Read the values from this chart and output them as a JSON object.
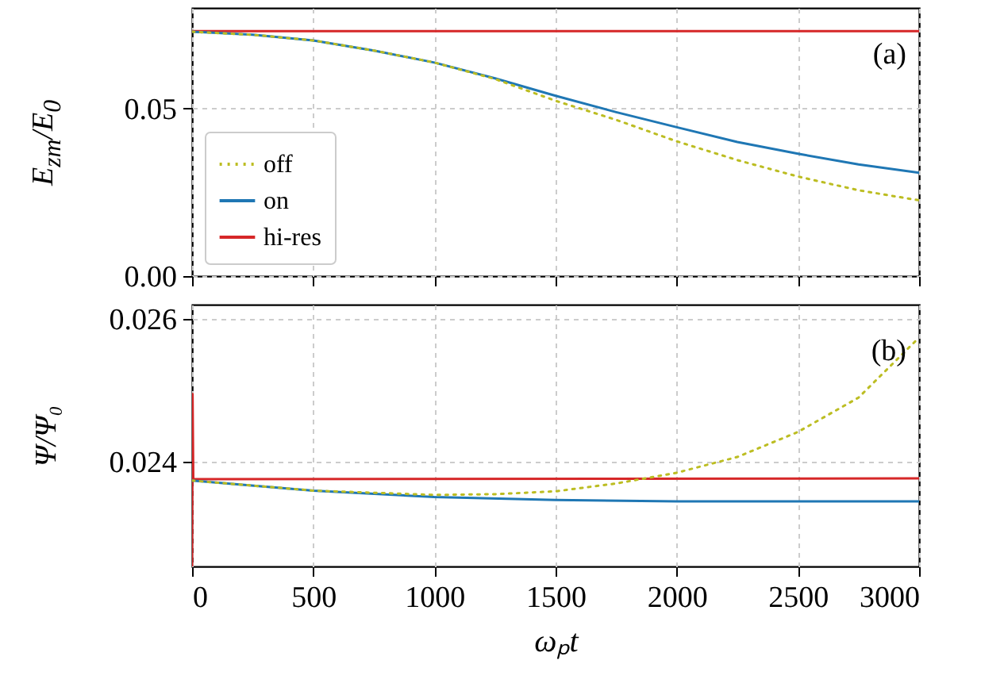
{
  "chart_data": [
    {
      "type": "line",
      "ylabel": "E$_{zm}$/E$_{0}$",
      "annotations": [
        "(a)"
      ],
      "xlim": [
        0,
        3000
      ],
      "xticks": [
        0,
        500,
        1000,
        1500,
        2000,
        2500,
        3000
      ],
      "ylim": [
        0,
        0.08
      ],
      "yticks": [
        {
          "value": 0,
          "label": "0.00"
        },
        {
          "value": 0.05,
          "label": "0.05"
        }
      ],
      "grid": true,
      "legend": "bottom left",
      "tick_labels": "y",
      "series": [
        {
          "name": "off",
          "color": "#bcbd22",
          "line_style": "dotted",
          "x": [
            0,
            250,
            500,
            750,
            1000,
            1250,
            1500,
            1750,
            2000,
            2250,
            2500,
            2750,
            3000
          ],
          "values": [
            0.0729,
            0.072,
            0.0703,
            0.0673,
            0.0637,
            0.0588,
            0.0523,
            0.0466,
            0.0402,
            0.0346,
            0.0297,
            0.0256,
            0.0226
          ]
        },
        {
          "name": "on",
          "color": "#1f77b4",
          "line_style": "solid",
          "x": [
            0,
            250,
            500,
            750,
            1000,
            1250,
            1500,
            1750,
            2000,
            2250,
            2500,
            2750,
            3000
          ],
          "values": [
            0.0729,
            0.072,
            0.0703,
            0.0673,
            0.0637,
            0.059,
            0.0538,
            0.0489,
            0.0444,
            0.04,
            0.0365,
            0.0333,
            0.0308
          ]
        },
        {
          "name": "hi-res",
          "color": "#d62728",
          "line_style": "solid",
          "x": [
            0,
            3000
          ],
          "values": [
            0.0731,
            0.0731
          ]
        }
      ]
    },
    {
      "type": "line",
      "xlabel": "ωₚt",
      "ylabel": "Ψ/Ψ₀",
      "annotations": [
        "(b)"
      ],
      "xlim": [
        0,
        3000
      ],
      "xticks": [
        0,
        500,
        1000,
        1500,
        2000,
        2500,
        3000
      ],
      "ylim": [
        0.02254,
        0.0262
      ],
      "yticks": [
        0.024,
        0.026
      ],
      "grid": true,
      "series": [
        {
          "color": "#bcbd22",
          "line_style": "dotted",
          "x": [
            0,
            500,
            1000,
            1250,
            1500,
            1750,
            2000,
            2250,
            2500,
            2750,
            3000
          ],
          "values": [
            0.02374,
            0.0236,
            0.02354,
            0.02355,
            0.02359,
            0.0237,
            0.02385,
            0.02407,
            0.02442,
            0.0249,
            0.02574
          ]
        },
        {
          "color": "#1f77b4",
          "line_style": "solid",
          "x": [
            0,
            500,
            1000,
            1500,
            2000,
            2500,
            3000
          ],
          "values": [
            0.02374,
            0.0236,
            0.02351,
            0.02347,
            0.02345,
            0.02345,
            0.02345
          ]
        },
        {
          "color": "#d62728",
          "line_style": "solid",
          "x": [
            0,
            2,
            5,
            3000
          ],
          "values": [
            0.02255,
            0.02495,
            0.02376,
            0.02377
          ]
        }
      ]
    }
  ]
}
